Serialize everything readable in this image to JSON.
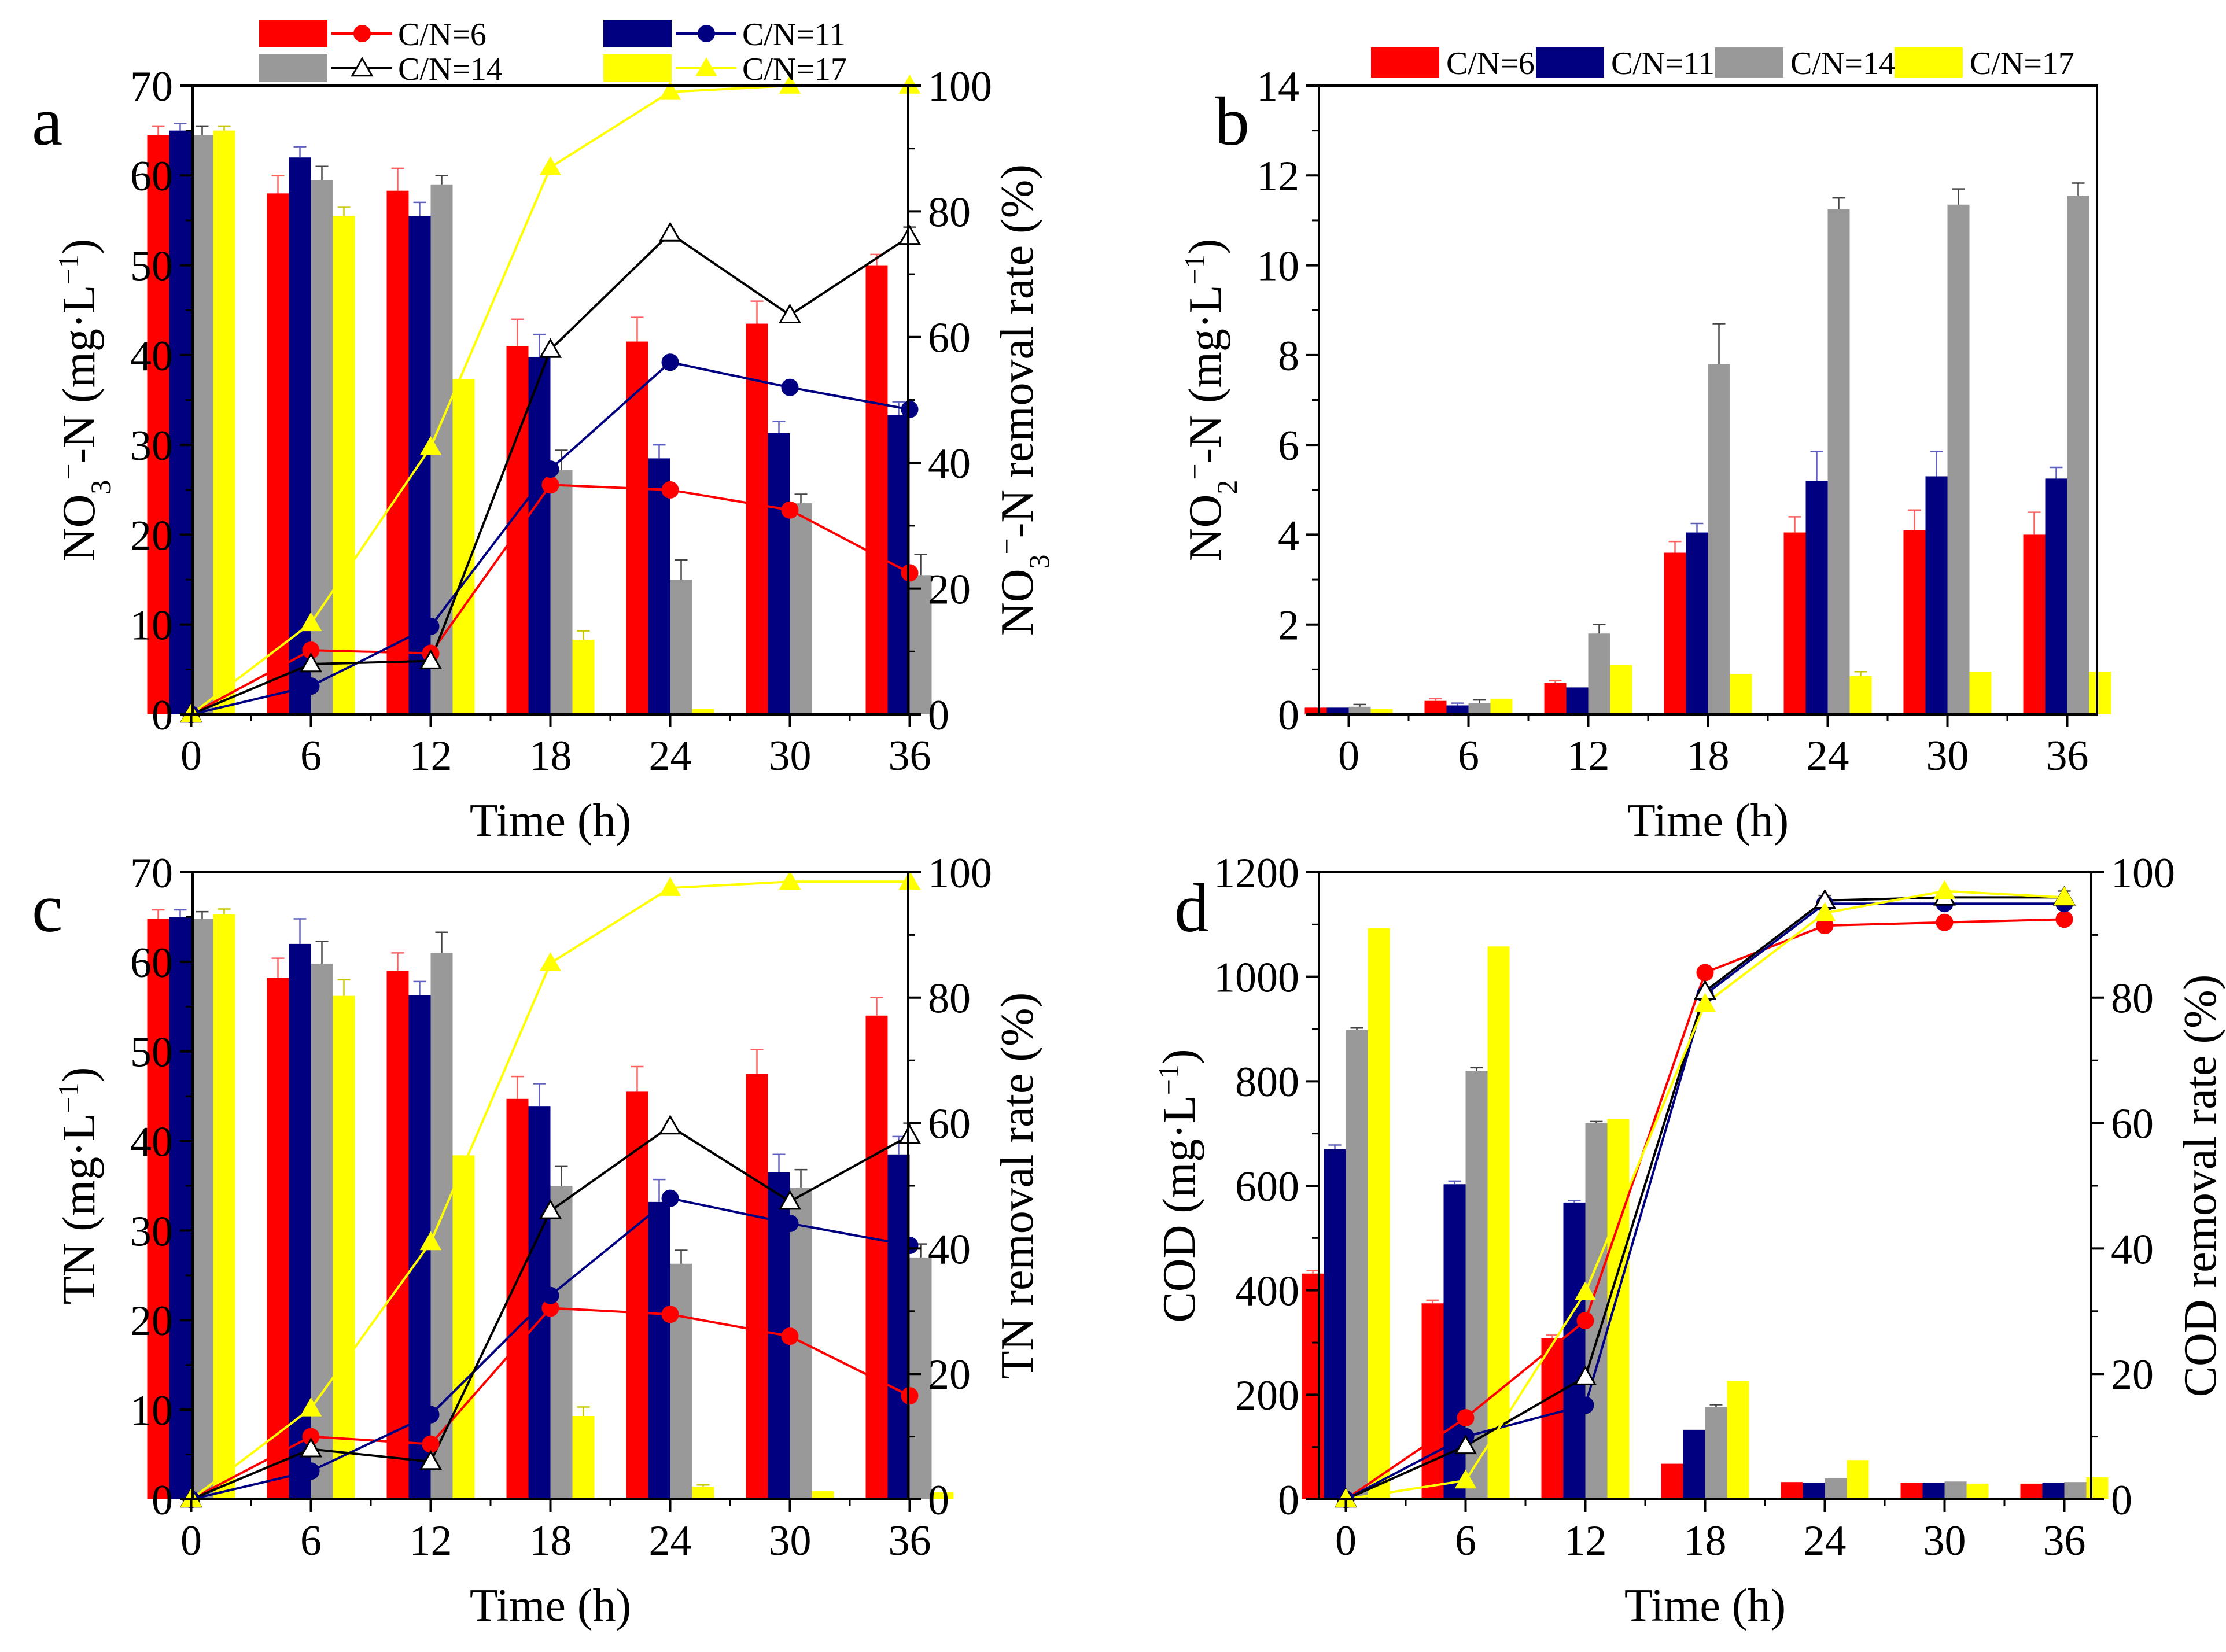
{
  "colors": {
    "C/N=6": "#ff0000",
    "C/N=11": "#000080",
    "C/N=14": "#999999",
    "C/N=17": "#ffff00"
  },
  "chart_data": [
    {
      "id": "a",
      "panel_letter": "a",
      "type": "bar+line",
      "xlabel": "Time (h)",
      "ylabel": "NO3−-N (mg·L−1)",
      "ylabel_parts": {
        "pre": "NO",
        "sub": "3",
        "sup1": "−",
        "mid": "-N (mg·L",
        "sup2": "−1",
        "post": ")"
      },
      "ylabel_right": "NO3−-N removal rate (%)",
      "ylabel_right_parts": {
        "pre": "NO",
        "sub": "3",
        "sup1": "−",
        "post": "-N removal rate (%)"
      },
      "ylim": [
        0,
        70
      ],
      "yticks": [
        0,
        10,
        20,
        30,
        40,
        50,
        60,
        70
      ],
      "ylim_right": [
        0,
        100
      ],
      "yticks_right": [
        0,
        20,
        40,
        60,
        80,
        100
      ],
      "categories": [
        "0",
        "6",
        "12",
        "18",
        "24",
        "30",
        "36"
      ],
      "legend": {
        "position": "top",
        "entries": [
          {
            "label": "C/N=6",
            "series": "C/N=6",
            "marker": "circle"
          },
          {
            "label": "C/N=11",
            "series": "C/N=11",
            "marker": "circle"
          },
          {
            "label": "C/N=14",
            "series": "C/N=14",
            "marker": "triangle-open"
          },
          {
            "label": "C/N=17",
            "series": "C/N=17",
            "marker": "triangle"
          }
        ]
      },
      "bars": [
        {
          "name": "C/N=6",
          "values": [
            64.5,
            58.0,
            58.3,
            41.0,
            41.5,
            43.5,
            50.0
          ],
          "errors": [
            1.0,
            2.0,
            2.5,
            3.0,
            2.7,
            2.5,
            1.2
          ]
        },
        {
          "name": "C/N=11",
          "values": [
            65.0,
            62.0,
            55.5,
            39.8,
            28.5,
            31.3,
            33.3
          ],
          "errors": [
            0.8,
            1.2,
            1.5,
            2.5,
            1.5,
            1.3,
            1.5
          ]
        },
        {
          "name": "C/N=14",
          "values": [
            64.5,
            59.5,
            59.0,
            27.2,
            15.0,
            23.5,
            15.5
          ],
          "errors": [
            1.0,
            1.5,
            1.0,
            2.2,
            2.2,
            1.0,
            2.3
          ]
        },
        {
          "name": "C/N=17",
          "values": [
            65.0,
            55.5,
            37.3,
            8.3,
            0.6,
            0.0,
            0.0
          ],
          "errors": [
            0.5,
            1.0,
            0.0,
            1.0,
            0.0,
            0.0,
            0.0
          ]
        }
      ],
      "lines": [
        {
          "name": "C/N=6",
          "marker": "circle",
          "values": [
            0,
            10.2,
            9.7,
            36.5,
            35.7,
            32.5,
            22.5
          ]
        },
        {
          "name": "C/N=11",
          "marker": "circle",
          "values": [
            0,
            4.5,
            14.0,
            39.0,
            56.0,
            52.0,
            48.5
          ]
        },
        {
          "name": "C/N=14",
          "marker": "triangle-open",
          "values": [
            0,
            8.0,
            8.5,
            58.0,
            76.5,
            63.5,
            76.0
          ],
          "errors": [
            0,
            0,
            0,
            0,
            0,
            0,
            1.5
          ]
        },
        {
          "name": "C/N=17",
          "marker": "triangle",
          "values": [
            0,
            14.5,
            42.5,
            87.0,
            99.0,
            100.0,
            100.0
          ]
        }
      ]
    },
    {
      "id": "b",
      "panel_letter": "b",
      "type": "bar",
      "xlabel": "Time (h)",
      "ylabel": "NO2−-N (mg·L−1)",
      "ylabel_parts": {
        "pre": "NO",
        "sub": "2",
        "sup1": "−",
        "mid": "-N (mg·L",
        "sup2": "−1",
        "post": ")"
      },
      "ylim": [
        0,
        14
      ],
      "yticks": [
        0,
        2,
        4,
        6,
        8,
        10,
        12,
        14
      ],
      "categories": [
        "0",
        "6",
        "12",
        "18",
        "24",
        "30",
        "36"
      ],
      "legend": {
        "position": "top",
        "entries": [
          {
            "label": "C/N=6",
            "series": "C/N=6"
          },
          {
            "label": "C/N=11",
            "series": "C/N=11"
          },
          {
            "label": "C/N=14",
            "series": "C/N=14"
          },
          {
            "label": "C/N=17",
            "series": "C/N=17"
          }
        ]
      },
      "bars": [
        {
          "name": "C/N=6",
          "values": [
            0.15,
            0.3,
            0.7,
            3.6,
            4.05,
            4.1,
            4.0
          ],
          "errors": [
            0,
            0.05,
            0.05,
            0.25,
            0.35,
            0.45,
            0.5
          ]
        },
        {
          "name": "C/N=11",
          "values": [
            0.15,
            0.2,
            0.6,
            4.05,
            5.2,
            5.3,
            5.25
          ],
          "errors": [
            0,
            0.05,
            0,
            0.2,
            0.65,
            0.55,
            0.25
          ]
        },
        {
          "name": "C/N=14",
          "values": [
            0.17,
            0.25,
            1.8,
            7.8,
            11.25,
            11.35,
            11.55
          ],
          "errors": [
            0.05,
            0.07,
            0.2,
            0.9,
            0.25,
            0.35,
            0.28
          ]
        },
        {
          "name": "C/N=17",
          "values": [
            0.12,
            0.35,
            1.1,
            0.9,
            0.85,
            0.95,
            0.95
          ],
          "errors": [
            0,
            0,
            0,
            0,
            0.1,
            0,
            0
          ]
        }
      ]
    },
    {
      "id": "c",
      "panel_letter": "c",
      "type": "bar+line",
      "xlabel": "Time (h)",
      "ylabel": "TN (mg·L−1)",
      "ylabel_parts": {
        "pre": "TN (mg·L",
        "sup2": "−1",
        "post": ")"
      },
      "ylabel_right": "TN removal rate (%)",
      "ylabel_right_parts": {
        "pre": "TN removal rate (%)"
      },
      "ylim": [
        0,
        70
      ],
      "yticks": [
        0,
        10,
        20,
        30,
        40,
        50,
        60,
        70
      ],
      "ylim_right": [
        0,
        100
      ],
      "yticks_right": [
        0,
        20,
        40,
        60,
        80,
        100
      ],
      "categories": [
        "0",
        "6",
        "12",
        "18",
        "24",
        "30",
        "36"
      ],
      "bars": [
        {
          "name": "C/N=6",
          "values": [
            64.8,
            58.2,
            59.0,
            44.7,
            45.5,
            47.5,
            54.0
          ],
          "errors": [
            1.0,
            2.2,
            2.0,
            2.5,
            2.8,
            2.7,
            2.0
          ]
        },
        {
          "name": "C/N=11",
          "values": [
            65.0,
            62.0,
            56.3,
            43.9,
            33.2,
            36.5,
            38.5
          ],
          "errors": [
            0.8,
            2.8,
            1.5,
            2.5,
            2.5,
            2.0,
            2.0
          ]
        },
        {
          "name": "C/N=14",
          "values": [
            64.8,
            59.8,
            61.0,
            35.0,
            26.3,
            34.8,
            27.0
          ],
          "errors": [
            0.8,
            2.5,
            2.3,
            2.2,
            1.5,
            2.0,
            1.5
          ]
        },
        {
          "name": "C/N=17",
          "values": [
            65.3,
            56.2,
            38.4,
            9.3,
            1.4,
            0.9,
            0.8
          ],
          "errors": [
            0.6,
            1.8,
            0,
            1.0,
            0.2,
            0,
            0
          ]
        }
      ],
      "lines": [
        {
          "name": "C/N=6",
          "marker": "circle",
          "values": [
            0,
            10.0,
            8.8,
            30.5,
            29.5,
            26.0,
            16.5
          ]
        },
        {
          "name": "C/N=11",
          "marker": "circle",
          "values": [
            0,
            4.5,
            13.5,
            32.5,
            48.0,
            44.0,
            40.5
          ]
        },
        {
          "name": "C/N=14",
          "marker": "triangle-open",
          "values": [
            0,
            8.0,
            6.0,
            46.0,
            59.5,
            47.5,
            58.0
          ],
          "errors": [
            0,
            0,
            0,
            0,
            0,
            0,
            2.0
          ]
        },
        {
          "name": "C/N=17",
          "marker": "triangle",
          "values": [
            0,
            14.5,
            41.0,
            85.5,
            97.5,
            98.5,
            98.5
          ]
        }
      ]
    },
    {
      "id": "d",
      "panel_letter": "d",
      "type": "bar+line",
      "xlabel": "Time (h)",
      "ylabel": "COD (mg·L−1)",
      "ylabel_parts": {
        "pre": "COD (mg·L",
        "sup2": "−1",
        "post": ")"
      },
      "ylabel_right": "COD removal rate (%)",
      "ylabel_right_parts": {
        "pre": "COD removal rate (%)"
      },
      "ylim": [
        0,
        1200
      ],
      "yticks": [
        0,
        200,
        400,
        600,
        800,
        1000,
        1200
      ],
      "ylim_right": [
        0,
        100
      ],
      "yticks_right": [
        0,
        20,
        40,
        60,
        80,
        100
      ],
      "categories": [
        "0",
        "6",
        "12",
        "18",
        "24",
        "30",
        "36"
      ],
      "bars": [
        {
          "name": "C/N=6",
          "values": [
            432,
            375,
            308,
            68,
            33,
            32,
            30
          ],
          "errors": [
            6,
            6,
            6,
            0,
            0,
            0,
            0
          ]
        },
        {
          "name": "C/N=11",
          "values": [
            670,
            603,
            568,
            133,
            32,
            31,
            32
          ],
          "errors": [
            8,
            6,
            4,
            0,
            0,
            0,
            0
          ]
        },
        {
          "name": "C/N=14",
          "values": [
            898,
            820,
            720,
            177,
            40,
            34,
            33
          ],
          "errors": [
            4,
            6,
            3,
            4,
            0,
            0,
            0
          ]
        },
        {
          "name": "C/N=17",
          "values": [
            1093,
            1058,
            728,
            226,
            75,
            30,
            42
          ],
          "errors": [
            0,
            0,
            0,
            0,
            0,
            0,
            0
          ]
        }
      ],
      "lines": [
        {
          "name": "C/N=6",
          "marker": "circle",
          "values": [
            0,
            13.0,
            28.5,
            84.0,
            91.5,
            92.0,
            92.5
          ]
        },
        {
          "name": "C/N=11",
          "marker": "circle",
          "values": [
            0,
            10.0,
            15.0,
            80.5,
            95.0,
            95.0,
            95.0
          ]
        },
        {
          "name": "C/N=14",
          "marker": "triangle-open",
          "values": [
            0,
            8.5,
            19.5,
            81.0,
            95.5,
            96.0,
            96.0
          ],
          "errors": [
            0,
            0,
            0,
            0,
            0.8,
            0.8,
            1.0
          ]
        },
        {
          "name": "C/N=17",
          "marker": "triangle",
          "values": [
            0,
            3.0,
            33.0,
            79.0,
            93.5,
            97.0,
            96.0
          ]
        }
      ]
    }
  ]
}
